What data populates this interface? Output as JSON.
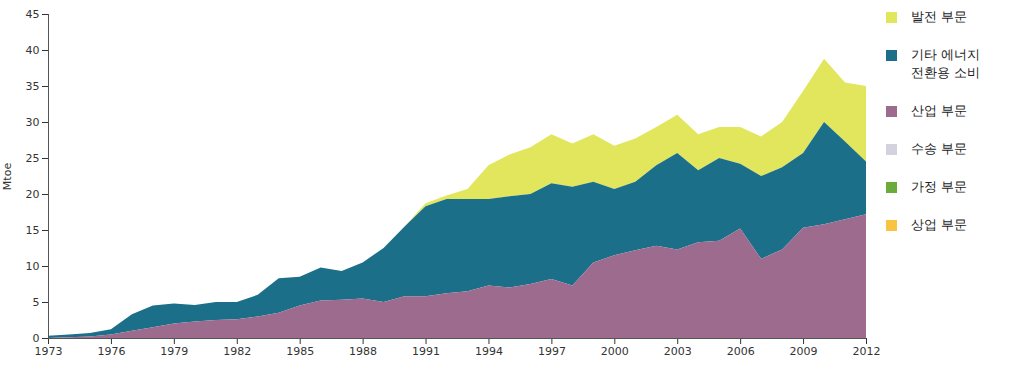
{
  "chart_data": {
    "type": "area",
    "stacked": true,
    "y_label": "Mtoe",
    "x": [
      1973,
      1974,
      1975,
      1976,
      1977,
      1978,
      1979,
      1980,
      1981,
      1982,
      1983,
      1984,
      1985,
      1986,
      1987,
      1988,
      1989,
      1990,
      1991,
      1992,
      1993,
      1994,
      1995,
      1996,
      1997,
      1998,
      1999,
      2000,
      2001,
      2002,
      2003,
      2004,
      2005,
      2006,
      2007,
      2008,
      2009,
      2010,
      2011,
      2012
    ],
    "xlim": [
      1973,
      2012
    ],
    "xticks": [
      1973,
      1976,
      1979,
      1982,
      1985,
      1988,
      1991,
      1994,
      1997,
      2000,
      2003,
      2006,
      2009,
      2012
    ],
    "ylim": [
      0,
      45
    ],
    "yticks": [
      0,
      5,
      10,
      15,
      20,
      25,
      30,
      35,
      40,
      45
    ],
    "legend": "right",
    "series": [
      {
        "name": "발전 부문",
        "color": "#e2e65c",
        "values": [
          0,
          0,
          0,
          0,
          0,
          0,
          0,
          0,
          0,
          0,
          0,
          0,
          0,
          0,
          0,
          0,
          0,
          0,
          0.4,
          0.5,
          1.4,
          4.7,
          5.8,
          6.5,
          6.8,
          6.0,
          6.6,
          6.0,
          6.0,
          5.3,
          5.3,
          5.0,
          4.3,
          5.1,
          5.5,
          6.3,
          8.6,
          8.8,
          8.2,
          10.5
        ]
      },
      {
        "name": "기타 에너지\n전환용 소비",
        "color": "#1b6f89",
        "values": [
          0.3,
          0.4,
          0.5,
          0.7,
          2.3,
          3.0,
          2.8,
          2.3,
          2.5,
          2.4,
          3.0,
          4.8,
          4.0,
          4.6,
          4.0,
          5.0,
          7.5,
          9.7,
          12.5,
          13.1,
          12.8,
          12.0,
          12.7,
          12.5,
          13.3,
          13.7,
          11.2,
          9.2,
          9.5,
          11.2,
          13.4,
          10.0,
          11.5,
          9.0,
          11.5,
          11.4,
          10.4,
          14.2,
          10.8,
          7.3
        ]
      },
      {
        "name": "산업 부문",
        "color": "#9c6b8e",
        "values": [
          0,
          0.1,
          0.2,
          0.5,
          1.0,
          1.5,
          2.0,
          2.3,
          2.5,
          2.6,
          3.0,
          3.5,
          4.5,
          5.2,
          5.3,
          5.5,
          5.0,
          5.8,
          5.8,
          6.2,
          6.5,
          7.3,
          7.0,
          7.5,
          8.2,
          7.3,
          10.5,
          11.5,
          12.2,
          12.8,
          12.3,
          13.3,
          13.5,
          15.2,
          11.0,
          12.3,
          15.3,
          15.8,
          16.5,
          17.2
        ]
      },
      {
        "name": "수송 부문",
        "color": "#d4d2df",
        "values": [
          0,
          0,
          0,
          0,
          0,
          0,
          0,
          0,
          0,
          0,
          0,
          0,
          0,
          0,
          0,
          0,
          0,
          0,
          0,
          0,
          0,
          0,
          0,
          0,
          0,
          0,
          0,
          0,
          0,
          0,
          0,
          0,
          0,
          0,
          0,
          0,
          0,
          0,
          0,
          0
        ]
      },
      {
        "name": "가정 부문",
        "color": "#6aab3c",
        "values": [
          0,
          0,
          0,
          0,
          0,
          0,
          0,
          0,
          0,
          0,
          0,
          0,
          0,
          0,
          0,
          0,
          0,
          0,
          0,
          0,
          0,
          0,
          0,
          0,
          0,
          0,
          0,
          0,
          0,
          0,
          0,
          0,
          0,
          0,
          0,
          0,
          0,
          0,
          0,
          0
        ]
      },
      {
        "name": "상업 부문",
        "color": "#f7c442",
        "values": [
          0,
          0,
          0,
          0,
          0,
          0,
          0,
          0,
          0,
          0,
          0,
          0,
          0,
          0,
          0,
          0,
          0,
          0,
          0,
          0,
          0,
          0,
          0,
          0,
          0,
          0,
          0,
          0,
          0,
          0,
          0,
          0,
          0,
          0,
          0,
          0,
          0,
          0,
          0,
          0
        ]
      }
    ]
  }
}
